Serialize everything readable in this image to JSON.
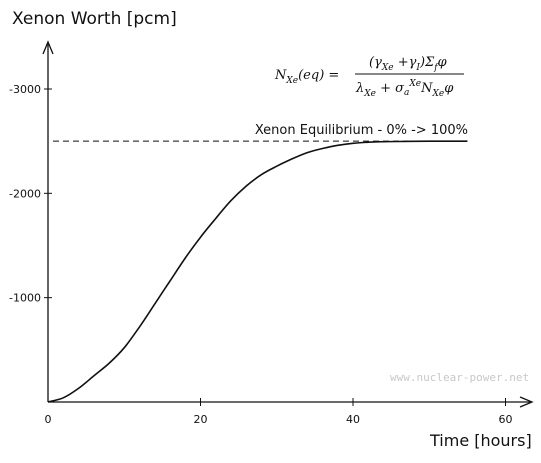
{
  "chart_data": {
    "type": "line",
    "title": "Xenon Worth [pcm]",
    "xlabel": "Time [hours]",
    "ylabel": "Xenon Worth [pcm]",
    "xlim": [
      0,
      60
    ],
    "ylim": [
      0,
      -3000
    ],
    "x_ticks": [
      {
        "value": 0,
        "label": "0"
      },
      {
        "value": 20,
        "label": "20"
      },
      {
        "value": 40,
        "label": "40"
      },
      {
        "value": 60,
        "label": "60"
      }
    ],
    "y_ticks": [
      {
        "value": -1000,
        "label": "-1000"
      },
      {
        "value": -2000,
        "label": "-2000"
      },
      {
        "value": -3000,
        "label": "-3000"
      }
    ],
    "grid": false,
    "series": [
      {
        "x": [
          0,
          2,
          4,
          6,
          8,
          10,
          12,
          14,
          16,
          18,
          20,
          22,
          24,
          26,
          28,
          30,
          32,
          34,
          36,
          38,
          40,
          42,
          44,
          46,
          48,
          50,
          52,
          55
        ],
        "values": [
          0,
          -40,
          -130,
          -250,
          -370,
          -520,
          -720,
          -940,
          -1160,
          -1380,
          -1580,
          -1760,
          -1930,
          -2070,
          -2180,
          -2260,
          -2330,
          -2390,
          -2430,
          -2460,
          -2480,
          -2490,
          -2495,
          -2497,
          -2499,
          -2500,
          -2500,
          -2500
        ],
        "color": "#111111"
      }
    ],
    "reference_line": {
      "value": -2500,
      "label": "Xenon Equilibrium - 0% -> 100%",
      "style": "dashed"
    },
    "annotations": [
      {
        "type": "formula",
        "text": "N_Xe(eq) = (γ_Xe + γ_I) Σ_f φ / (λ_Xe + σ_a^Xe N_Xe φ)"
      },
      {
        "type": "watermark",
        "text": "www.nuclear-power.net"
      }
    ]
  }
}
